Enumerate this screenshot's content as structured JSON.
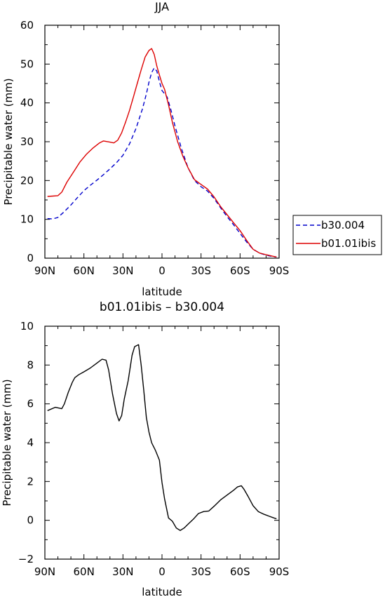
{
  "chart_data": [
    {
      "type": "line",
      "title": "JJA",
      "xlabel": "latitude",
      "ylabel": "Precipitable water (mm)",
      "xlim": [
        90,
        -90
      ],
      "ylim": [
        0,
        60
      ],
      "xticks": [
        90,
        60,
        30,
        0,
        -30,
        -60,
        -90
      ],
      "xtick_labels": [
        "90N",
        "60N",
        "30N",
        "0",
        "30S",
        "60S",
        "90S"
      ],
      "yticks": [
        0,
        10,
        20,
        30,
        40,
        50,
        60
      ],
      "ytick_labels": [
        "0",
        "10",
        "20",
        "30",
        "40",
        "50",
        "60"
      ],
      "grid": false,
      "legend_position": "right",
      "series": [
        {
          "name": "b30.004",
          "color": "#0000cc",
          "dash": "dashed",
          "points": [
            [
              88,
              10.2
            ],
            [
              84,
              10.1
            ],
            [
              80,
              10.5
            ],
            [
              75,
              12
            ],
            [
              70,
              13.7
            ],
            [
              65,
              15.6
            ],
            [
              60,
              17.4
            ],
            [
              55,
              18.8
            ],
            [
              50,
              20.1
            ],
            [
              45,
              21.5
            ],
            [
              40,
              23
            ],
            [
              35,
              24.6
            ],
            [
              30,
              26.5
            ],
            [
              25,
              29.4
            ],
            [
              20,
              33.4
            ],
            [
              15,
              38.5
            ],
            [
              12,
              42.3
            ],
            [
              10,
              45.3
            ],
            [
              8,
              47.8
            ],
            [
              6,
              49
            ],
            [
              4,
              48.2
            ],
            [
              2,
              45.5
            ],
            [
              0,
              43.2
            ],
            [
              -4,
              41.5
            ],
            [
              -7,
              38
            ],
            [
              -10,
              34
            ],
            [
              -15,
              28.2
            ],
            [
              -20,
              23.3
            ],
            [
              -25,
              20
            ],
            [
              -30,
              18.4
            ],
            [
              -35,
              17.3
            ],
            [
              -40,
              15.4
            ],
            [
              -45,
              13
            ],
            [
              -50,
              10.7
            ],
            [
              -55,
              8.6
            ],
            [
              -60,
              6.4
            ],
            [
              -65,
              4.2
            ],
            [
              -70,
              2.3
            ],
            [
              -75,
              1.3
            ],
            [
              -80,
              0.8
            ],
            [
              -85,
              0.4
            ],
            [
              -88,
              0.3
            ]
          ]
        },
        {
          "name": "b01.01ibis",
          "color": "#dd0000",
          "dash": "solid",
          "points": [
            [
              88,
              15.9
            ],
            [
              84,
              16
            ],
            [
              80,
              16.1
            ],
            [
              77,
              17
            ],
            [
              73,
              19.6
            ],
            [
              68,
              22.2
            ],
            [
              63,
              24.8
            ],
            [
              58,
              26.8
            ],
            [
              53,
              28.4
            ],
            [
              48,
              29.7
            ],
            [
              45,
              30.2
            ],
            [
              40,
              29.9
            ],
            [
              37,
              29.7
            ],
            [
              34,
              30.4
            ],
            [
              31,
              32.3
            ],
            [
              28,
              35
            ],
            [
              25,
              38
            ],
            [
              22,
              41.5
            ],
            [
              19,
              45
            ],
            [
              16,
              48.5
            ],
            [
              13,
              51.8
            ],
            [
              10,
              53.5
            ],
            [
              8,
              54
            ],
            [
              6,
              52.5
            ],
            [
              4,
              49.5
            ],
            [
              2,
              47.2
            ],
            [
              0,
              45
            ],
            [
              -2,
              43.5
            ],
            [
              -5,
              39.5
            ],
            [
              -8,
              35
            ],
            [
              -12,
              30
            ],
            [
              -16,
              26.3
            ],
            [
              -20,
              23.3
            ],
            [
              -25,
              20.2
            ],
            [
              -30,
              19
            ],
            [
              -35,
              17.8
            ],
            [
              -40,
              15.8
            ],
            [
              -45,
              13.3
            ],
            [
              -50,
              11.2
            ],
            [
              -55,
              9.1
            ],
            [
              -60,
              7.1
            ],
            [
              -65,
              4.6
            ],
            [
              -70,
              2.3
            ],
            [
              -75,
              1.3
            ],
            [
              -80,
              0.9
            ],
            [
              -85,
              0.5
            ],
            [
              -88,
              0.3
            ]
          ]
        }
      ]
    },
    {
      "type": "line",
      "title": "b01.01ibis – b30.004",
      "xlabel": "latitude",
      "ylabel": "Precipitable water (mm)",
      "xlim": [
        90,
        -90
      ],
      "ylim": [
        -2,
        10
      ],
      "xticks": [
        90,
        60,
        30,
        0,
        -30,
        -60,
        -90
      ],
      "xtick_labels": [
        "90N",
        "60N",
        "30N",
        "0",
        "30S",
        "60S",
        "90S"
      ],
      "yticks": [
        -2,
        0,
        2,
        4,
        6,
        8,
        10
      ],
      "ytick_labels": [
        "−2",
        "0",
        "2",
        "4",
        "6",
        "8",
        "10"
      ],
      "grid": false,
      "series": [
        {
          "color": "#000000",
          "dash": "solid",
          "points": [
            [
              88,
              5.65
            ],
            [
              82,
              5.82
            ],
            [
              77,
              5.75
            ],
            [
              75,
              6
            ],
            [
              72,
              6.6
            ],
            [
              69,
              7.1
            ],
            [
              67,
              7.35
            ],
            [
              64,
              7.5
            ],
            [
              60,
              7.65
            ],
            [
              55,
              7.85
            ],
            [
              50,
              8.1
            ],
            [
              46,
              8.3
            ],
            [
              43,
              8.25
            ],
            [
              41,
              7.75
            ],
            [
              38,
              6.5
            ],
            [
              35,
              5.5
            ],
            [
              33,
              5.12
            ],
            [
              31,
              5.4
            ],
            [
              29,
              6.25
            ],
            [
              26,
              7.2
            ],
            [
              23,
              8.5
            ],
            [
              21,
              8.95
            ],
            [
              18,
              9.05
            ],
            [
              16,
              8
            ],
            [
              14,
              6.7
            ],
            [
              12,
              5.3
            ],
            [
              10,
              4.55
            ],
            [
              8,
              4
            ],
            [
              5,
              3.6
            ],
            [
              2,
              3.1
            ],
            [
              0,
              1.95
            ],
            [
              -2,
              1.1
            ],
            [
              -5,
              0.12
            ],
            [
              -8,
              -0.05
            ],
            [
              -11,
              -0.4
            ],
            [
              -14,
              -0.52
            ],
            [
              -17,
              -0.4
            ],
            [
              -20,
              -0.2
            ],
            [
              -24,
              0.05
            ],
            [
              -28,
              0.35
            ],
            [
              -32,
              0.45
            ],
            [
              -36,
              0.48
            ],
            [
              -40,
              0.72
            ],
            [
              -45,
              1.05
            ],
            [
              -50,
              1.3
            ],
            [
              -55,
              1.55
            ],
            [
              -58,
              1.72
            ],
            [
              -61,
              1.78
            ],
            [
              -63,
              1.6
            ],
            [
              -66,
              1.25
            ],
            [
              -70,
              0.75
            ],
            [
              -74,
              0.45
            ],
            [
              -78,
              0.32
            ],
            [
              -82,
              0.22
            ],
            [
              -86,
              0.12
            ],
            [
              -88,
              0.08
            ]
          ]
        }
      ]
    }
  ]
}
